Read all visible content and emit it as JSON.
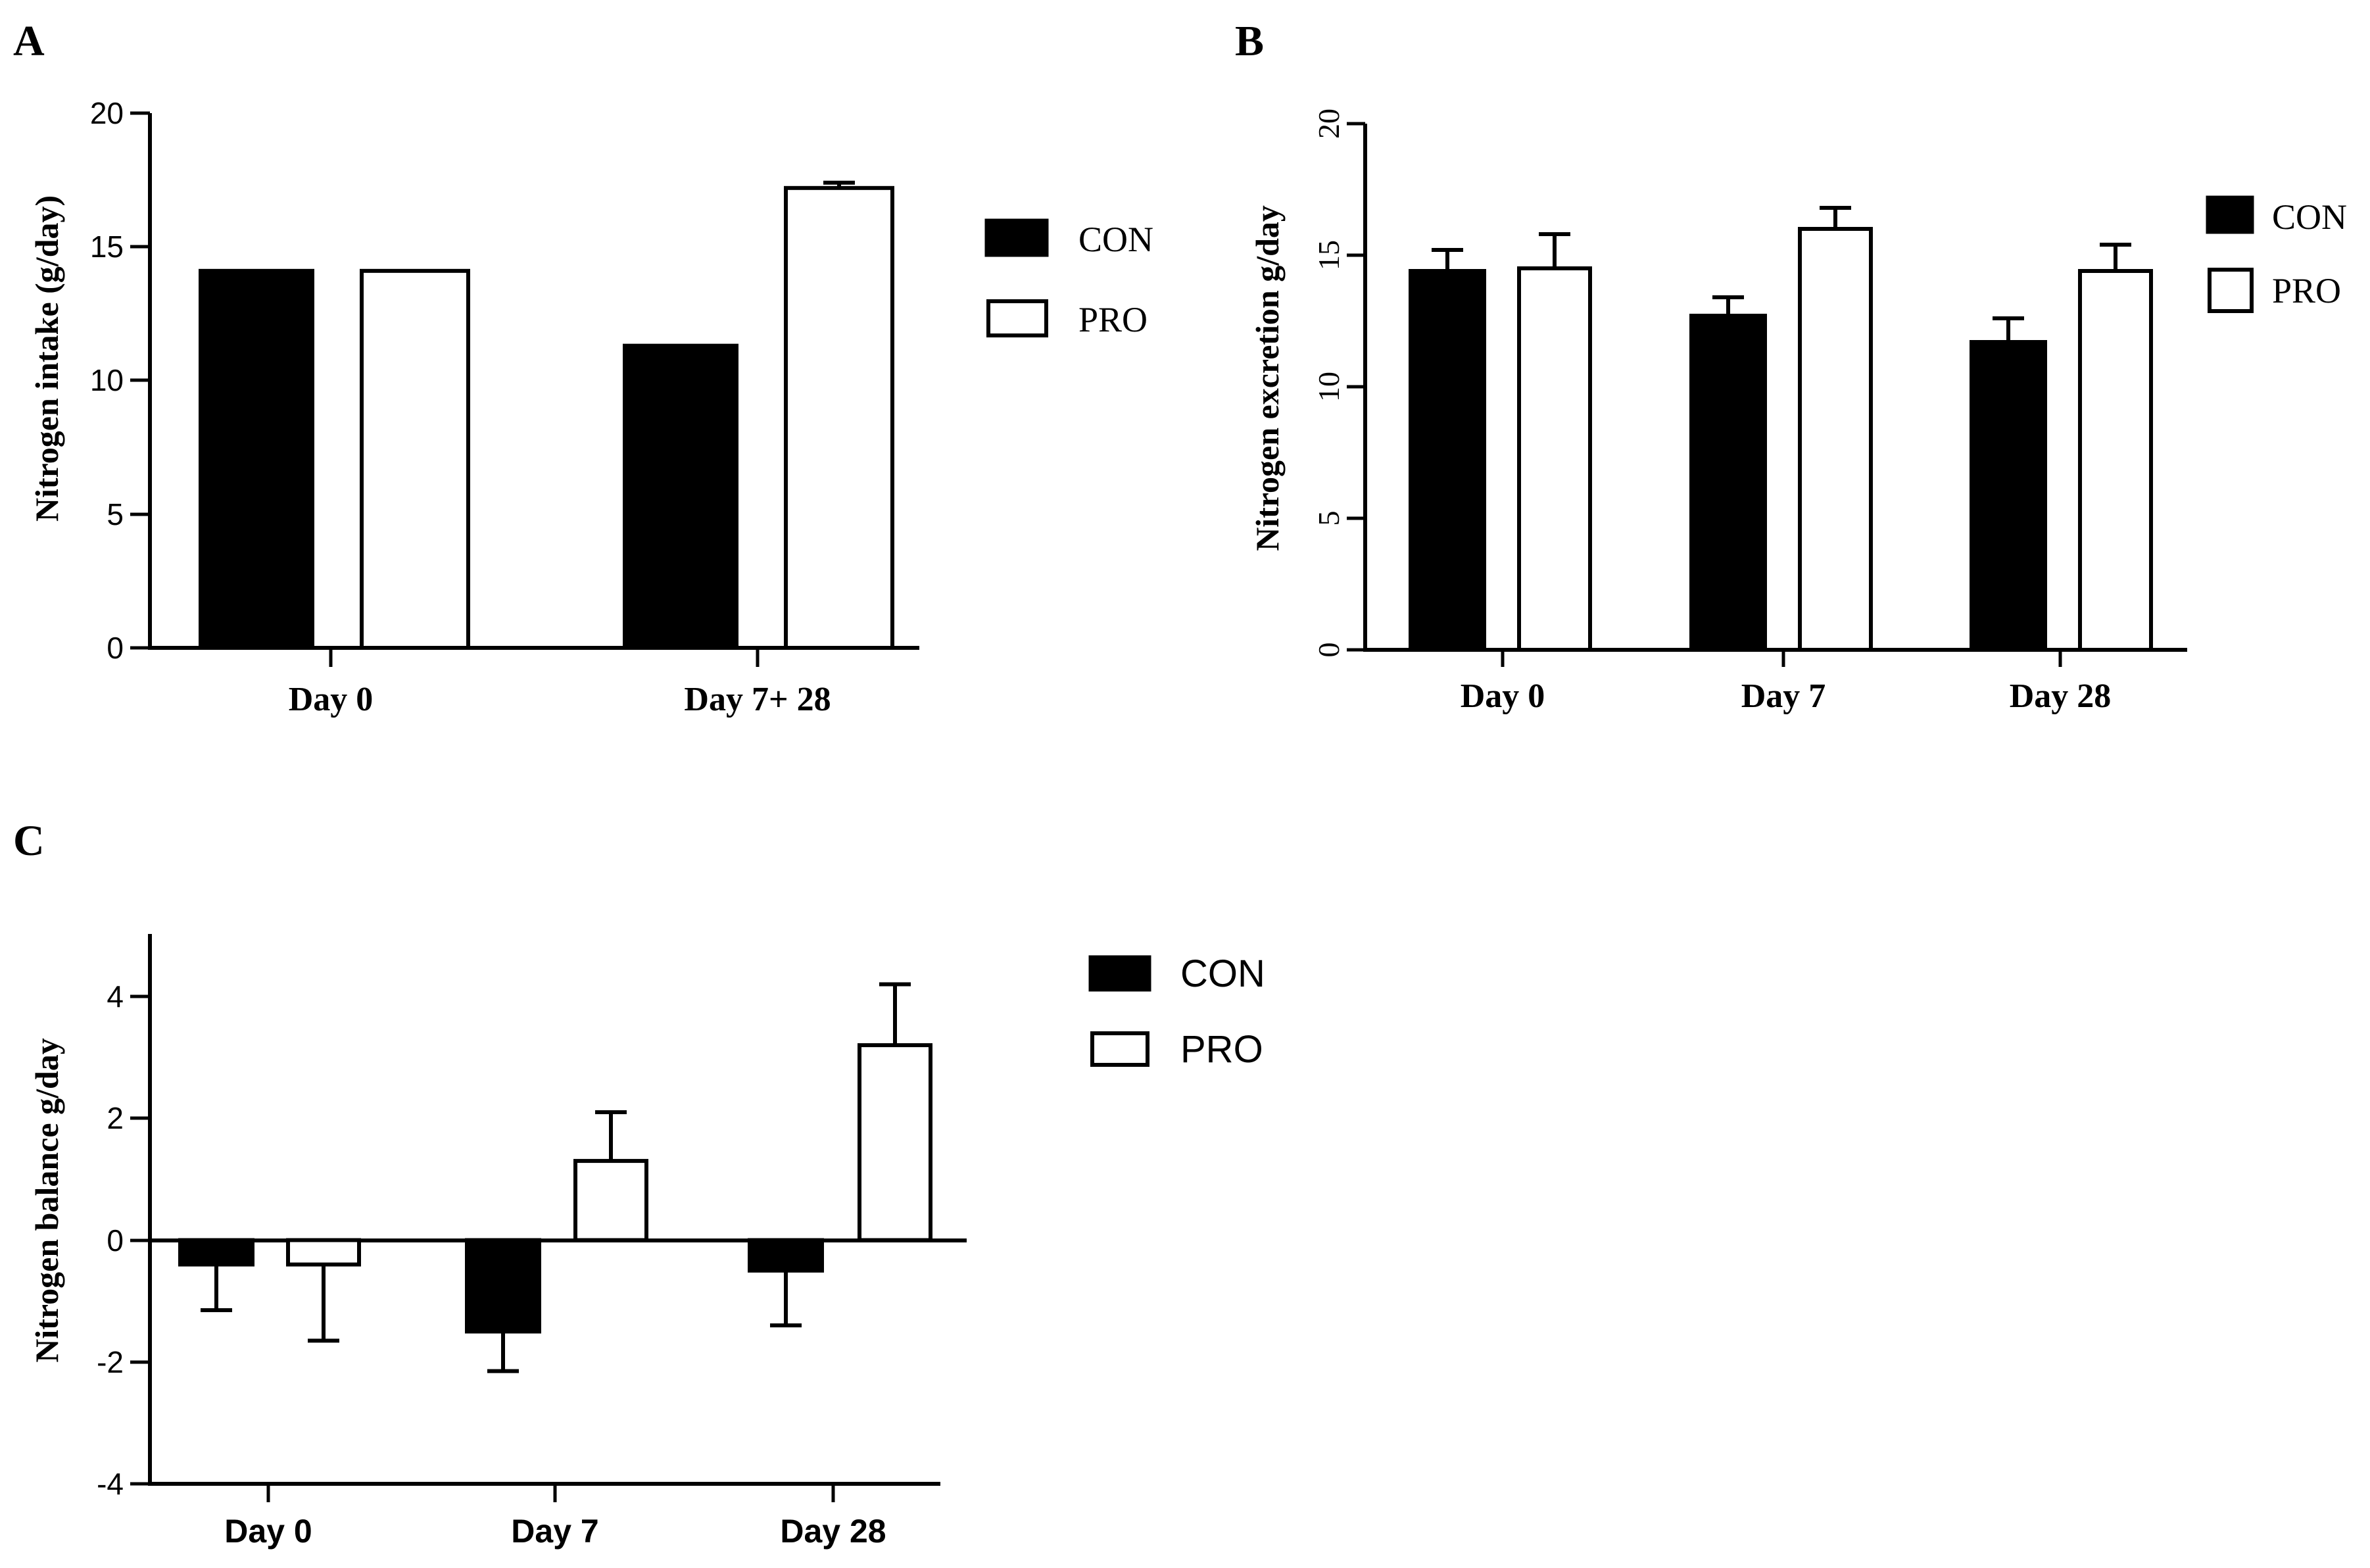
{
  "colors": {
    "con_fill": "#000000",
    "pro_fill": "#ffffff",
    "stroke": "#000000"
  },
  "chart_data": [
    {
      "panel": "A",
      "type": "bar",
      "ylabel": "Nitrogen intake (g/day)",
      "xlabel": "",
      "categories": [
        "Day 0",
        "Day 7+ 28"
      ],
      "ylim": [
        0,
        20
      ],
      "yticks": [
        0,
        5,
        10,
        15,
        20
      ],
      "legend": [
        "CON",
        "PRO"
      ],
      "series": [
        {
          "name": "CON",
          "values": [
            14.1,
            11.3
          ],
          "errors": [
            0,
            0
          ]
        },
        {
          "name": "PRO",
          "values": [
            14.1,
            17.2
          ],
          "errors": [
            0,
            0.2
          ]
        }
      ]
    },
    {
      "panel": "B",
      "type": "bar",
      "ylabel": "Nitrogen excretion g/day",
      "xlabel": "",
      "categories": [
        "Day 0",
        "Day 7",
        "Day 28"
      ],
      "ylim": [
        0,
        20
      ],
      "yticks": [
        0,
        5,
        10,
        15,
        20
      ],
      "legend": [
        "CON",
        "PRO"
      ],
      "series": [
        {
          "name": "CON",
          "values": [
            14.4,
            12.7,
            11.7
          ],
          "errors": [
            0.8,
            0.7,
            0.9
          ]
        },
        {
          "name": "PRO",
          "values": [
            14.5,
            16.0,
            14.4
          ],
          "errors": [
            1.3,
            0.8,
            1.0
          ]
        }
      ]
    },
    {
      "panel": "C",
      "type": "bar",
      "ylabel": "Nitrogen balance g/day",
      "xlabel": "",
      "categories": [
        "Day 0",
        "Day 7",
        "Day 28"
      ],
      "ylim": [
        -4,
        5
      ],
      "yticks": [
        -4,
        -2,
        0,
        2,
        4
      ],
      "legend": [
        "CON",
        "PRO"
      ],
      "series": [
        {
          "name": "CON",
          "values": [
            -0.4,
            -1.5,
            -0.5
          ],
          "errors": [
            0.75,
            0.65,
            0.9
          ]
        },
        {
          "name": "PRO",
          "values": [
            -0.4,
            1.3,
            3.2
          ],
          "errors": [
            1.25,
            0.8,
            1.0
          ]
        }
      ]
    }
  ]
}
